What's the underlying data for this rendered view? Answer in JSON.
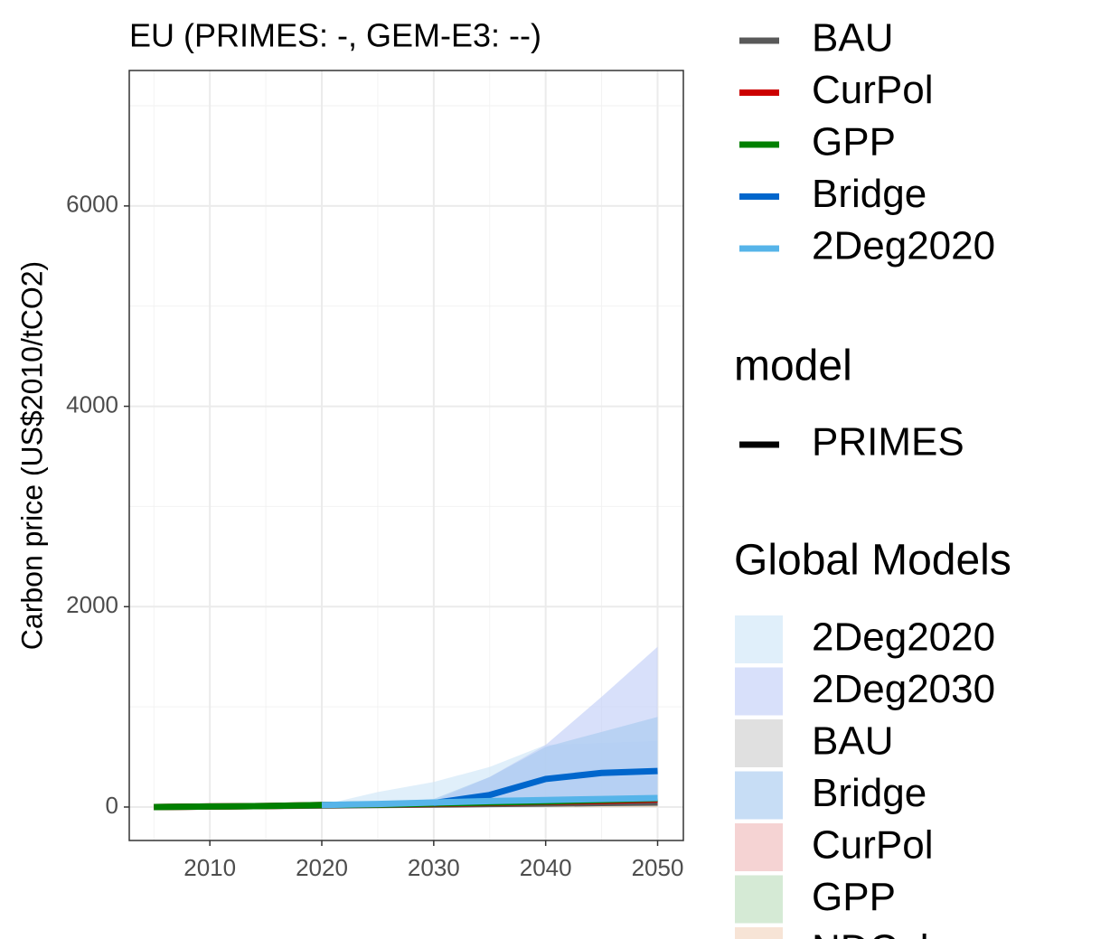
{
  "chart_data": {
    "type": "line",
    "title": "EU (PRIMES: -, GEM-E3: --)",
    "y_label": "Carbon price (US$2010/tCO2)",
    "x": [
      2005,
      2010,
      2015,
      2020,
      2025,
      2030,
      2035,
      2040,
      2045,
      2050
    ],
    "xlim": [
      2002.8,
      2052.3
    ],
    "xticks": [
      2010,
      2020,
      2030,
      2040,
      2050
    ],
    "xminor": [
      2005,
      2015,
      2025,
      2035,
      2045
    ],
    "ylim": [
      -334,
      7352
    ],
    "yticks": [
      0,
      2000,
      4000,
      6000
    ],
    "yminor": [
      1000,
      3000,
      5000,
      7000
    ],
    "grid": true,
    "series": [
      {
        "name": "BAU",
        "color": "#595959",
        "values": [
          0,
          5,
          10,
          15,
          20,
          25,
          30,
          35,
          40,
          45
        ]
      },
      {
        "name": "CurPol",
        "color": "#cc0000",
        "values": [
          0,
          5,
          10,
          20,
          25,
          30,
          40,
          50,
          60,
          75
        ]
      },
      {
        "name": "GPP",
        "color": "#008000",
        "values": [
          0,
          5,
          10,
          20,
          25,
          35,
          45,
          55,
          70,
          85
        ]
      },
      {
        "name": "Bridge",
        "color": "#0066cc",
        "values": [
          null,
          null,
          null,
          null,
          null,
          40,
          120,
          280,
          340,
          360
        ]
      },
      {
        "name": "2Deg2020",
        "color": "#56b4e9",
        "values": [
          null,
          null,
          null,
          20,
          30,
          45,
          60,
          70,
          80,
          90
        ]
      }
    ],
    "model_legend": {
      "title": "model",
      "items": [
        "PRIMES"
      ],
      "color": "#000000"
    },
    "ribbon_legend_title": "Global Models",
    "ribbon_x": [
      2020,
      2025,
      2030,
      2035,
      2040,
      2045,
      2050
    ],
    "ribbons": [
      {
        "name": "2Deg2020",
        "color": "#cfe6f7",
        "lower": [
          0,
          0,
          0,
          0,
          0,
          0,
          0
        ],
        "upper": [
          20,
          150,
          250,
          400,
          620,
          640,
          660
        ]
      },
      {
        "name": "2Deg2030",
        "color": "#c3d0f7",
        "lower": [
          null,
          null,
          0,
          0,
          0,
          0,
          0
        ],
        "upper": [
          null,
          null,
          60,
          300,
          620,
          1100,
          1600
        ]
      },
      {
        "name": "BAU",
        "color": "#d0d0d0",
        "lower": [
          0,
          0,
          0,
          0,
          0,
          0,
          0
        ],
        "upper": [
          10,
          15,
          20,
          30,
          40,
          50,
          60
        ]
      },
      {
        "name": "Bridge",
        "color": "#a9cbf0",
        "lower": [
          0,
          0,
          20,
          50,
          80,
          100,
          120
        ],
        "upper": [
          20,
          40,
          80,
          300,
          600,
          750,
          900
        ]
      },
      {
        "name": "CurPol",
        "color": "#f0bcbc",
        "lower": [
          0,
          0,
          0,
          0,
          0,
          0,
          0
        ],
        "upper": [
          20,
          30,
          40,
          50,
          60,
          80,
          100
        ]
      },
      {
        "name": "GPP",
        "color": "#bfdfbf",
        "lower": [
          0,
          0,
          0,
          0,
          0,
          0,
          0
        ],
        "upper": [
          20,
          30,
          40,
          55,
          70,
          90,
          110
        ]
      },
      {
        "name": "NDCplus",
        "color": "#f2d6c0",
        "lower": [
          0,
          0,
          0,
          0,
          0,
          0,
          0
        ],
        "upper": [
          15,
          25,
          35,
          45,
          55,
          65,
          80
        ]
      }
    ]
  }
}
